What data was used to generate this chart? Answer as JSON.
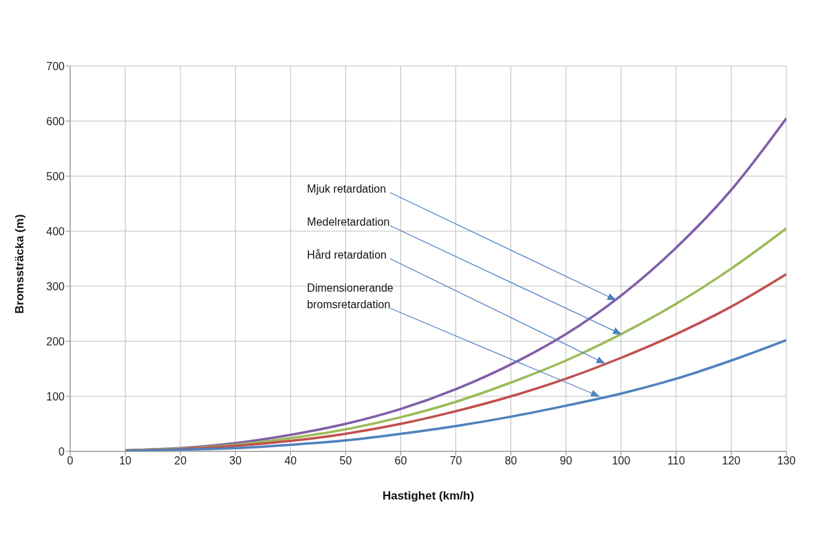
{
  "chart_data": {
    "type": "line",
    "xlabel": "Hastighet (km/h)",
    "ylabel": "Bromssträcka (m)",
    "x": [
      10,
      20,
      30,
      40,
      50,
      60,
      70,
      80,
      90,
      100,
      110,
      120,
      130
    ],
    "xlim": [
      0,
      130
    ],
    "xticks": [
      0,
      10,
      20,
      30,
      40,
      50,
      60,
      70,
      80,
      90,
      100,
      110,
      120,
      130
    ],
    "ylim": [
      0,
      700
    ],
    "yticks": [
      0,
      100,
      200,
      300,
      400,
      500,
      600,
      700
    ],
    "grid": true,
    "marker": "none",
    "line_style": "solid",
    "series": [
      {
        "color": "#7f5ea8",
        "values": [
          2,
          6,
          15,
          30,
          50,
          77,
          113,
          158,
          213,
          283,
          370,
          475,
          605
        ]
      },
      {
        "color": "#9bbb59",
        "values": [
          2,
          5,
          12,
          24,
          40,
          62,
          90,
          125,
          165,
          213,
          268,
          332,
          405
        ]
      },
      {
        "color": "#c0504d",
        "values": [
          1,
          4,
          10,
          19,
          32,
          50,
          73,
          100,
          132,
          170,
          213,
          263,
          322
        ]
      },
      {
        "color": "#4f81bd",
        "values": [
          1,
          3,
          6,
          12,
          20,
          32,
          46,
          63,
          83,
          105,
          132,
          165,
          202
        ]
      }
    ],
    "annotations": [
      {
        "text": "Mjuk retardation",
        "x": 99,
        "y": 275
      },
      {
        "text": "Medelretardation",
        "x": 100,
        "y": 213
      },
      {
        "text": "Hård retardation",
        "x": 97,
        "y": 160
      },
      {
        "text": "Dimensionerande bromsretardation",
        "x": 96,
        "y": 100
      }
    ]
  }
}
